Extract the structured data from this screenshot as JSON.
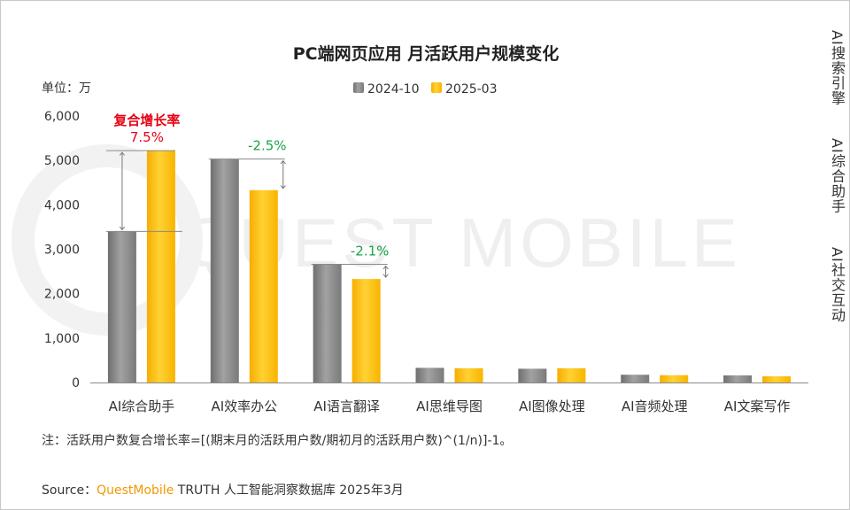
{
  "chart_data": {
    "type": "bar",
    "title": "PC端网页应用 月活跃用户规模变化",
    "unit_label": "单位：万",
    "categories": [
      "AI综合助手",
      "AI效率办公",
      "AI语言翻译",
      "AI思维导图",
      "AI图像处理",
      "AI音频处理",
      "AI文案写作"
    ],
    "series": [
      {
        "name": "2024-10",
        "color": "#8c8c8c",
        "values": [
          3400,
          5030,
          2660,
          330,
          310,
          175,
          160
        ]
      },
      {
        "name": "2025-03",
        "color": "#ffc000",
        "values": [
          5220,
          4330,
          2330,
          320,
          320,
          165,
          140
        ]
      }
    ],
    "ylim": [
      0,
      6000
    ],
    "yticks": [
      0,
      1000,
      2000,
      3000,
      4000,
      5000,
      6000
    ],
    "ytick_labels": [
      "0",
      "1,000",
      "2,000",
      "3,000",
      "4,000",
      "5,000",
      "6,000"
    ],
    "grid": false,
    "legend_position": "top-center",
    "growth_annotations": [
      {
        "category_index": 0,
        "label": "7.5%",
        "color": "#e60012"
      },
      {
        "category_index": 1,
        "label": "-2.5%",
        "color": "#1aa34a"
      },
      {
        "category_index": 2,
        "label": "-2.1%",
        "color": "#1aa34a"
      }
    ],
    "growth_header": {
      "label": "复合增长率",
      "color": "#e60012"
    },
    "watermark": "QUEST MOBILE"
  },
  "side_tabs": [
    {
      "label": "AI搜索引擎",
      "active": false
    },
    {
      "label": "AI综合助手",
      "active": true
    },
    {
      "label": "AI社交互动",
      "active": false
    }
  ],
  "footnote": "注：活跃用户数复合增长率=[(期末月的活跃用户数/期初月的活跃用户数)^(1/n)]-1。",
  "source": {
    "prefix": "Source：",
    "brand": "QuestMobile",
    "rest": " TRUTH 人工智能洞察数据库 2025年3月"
  }
}
